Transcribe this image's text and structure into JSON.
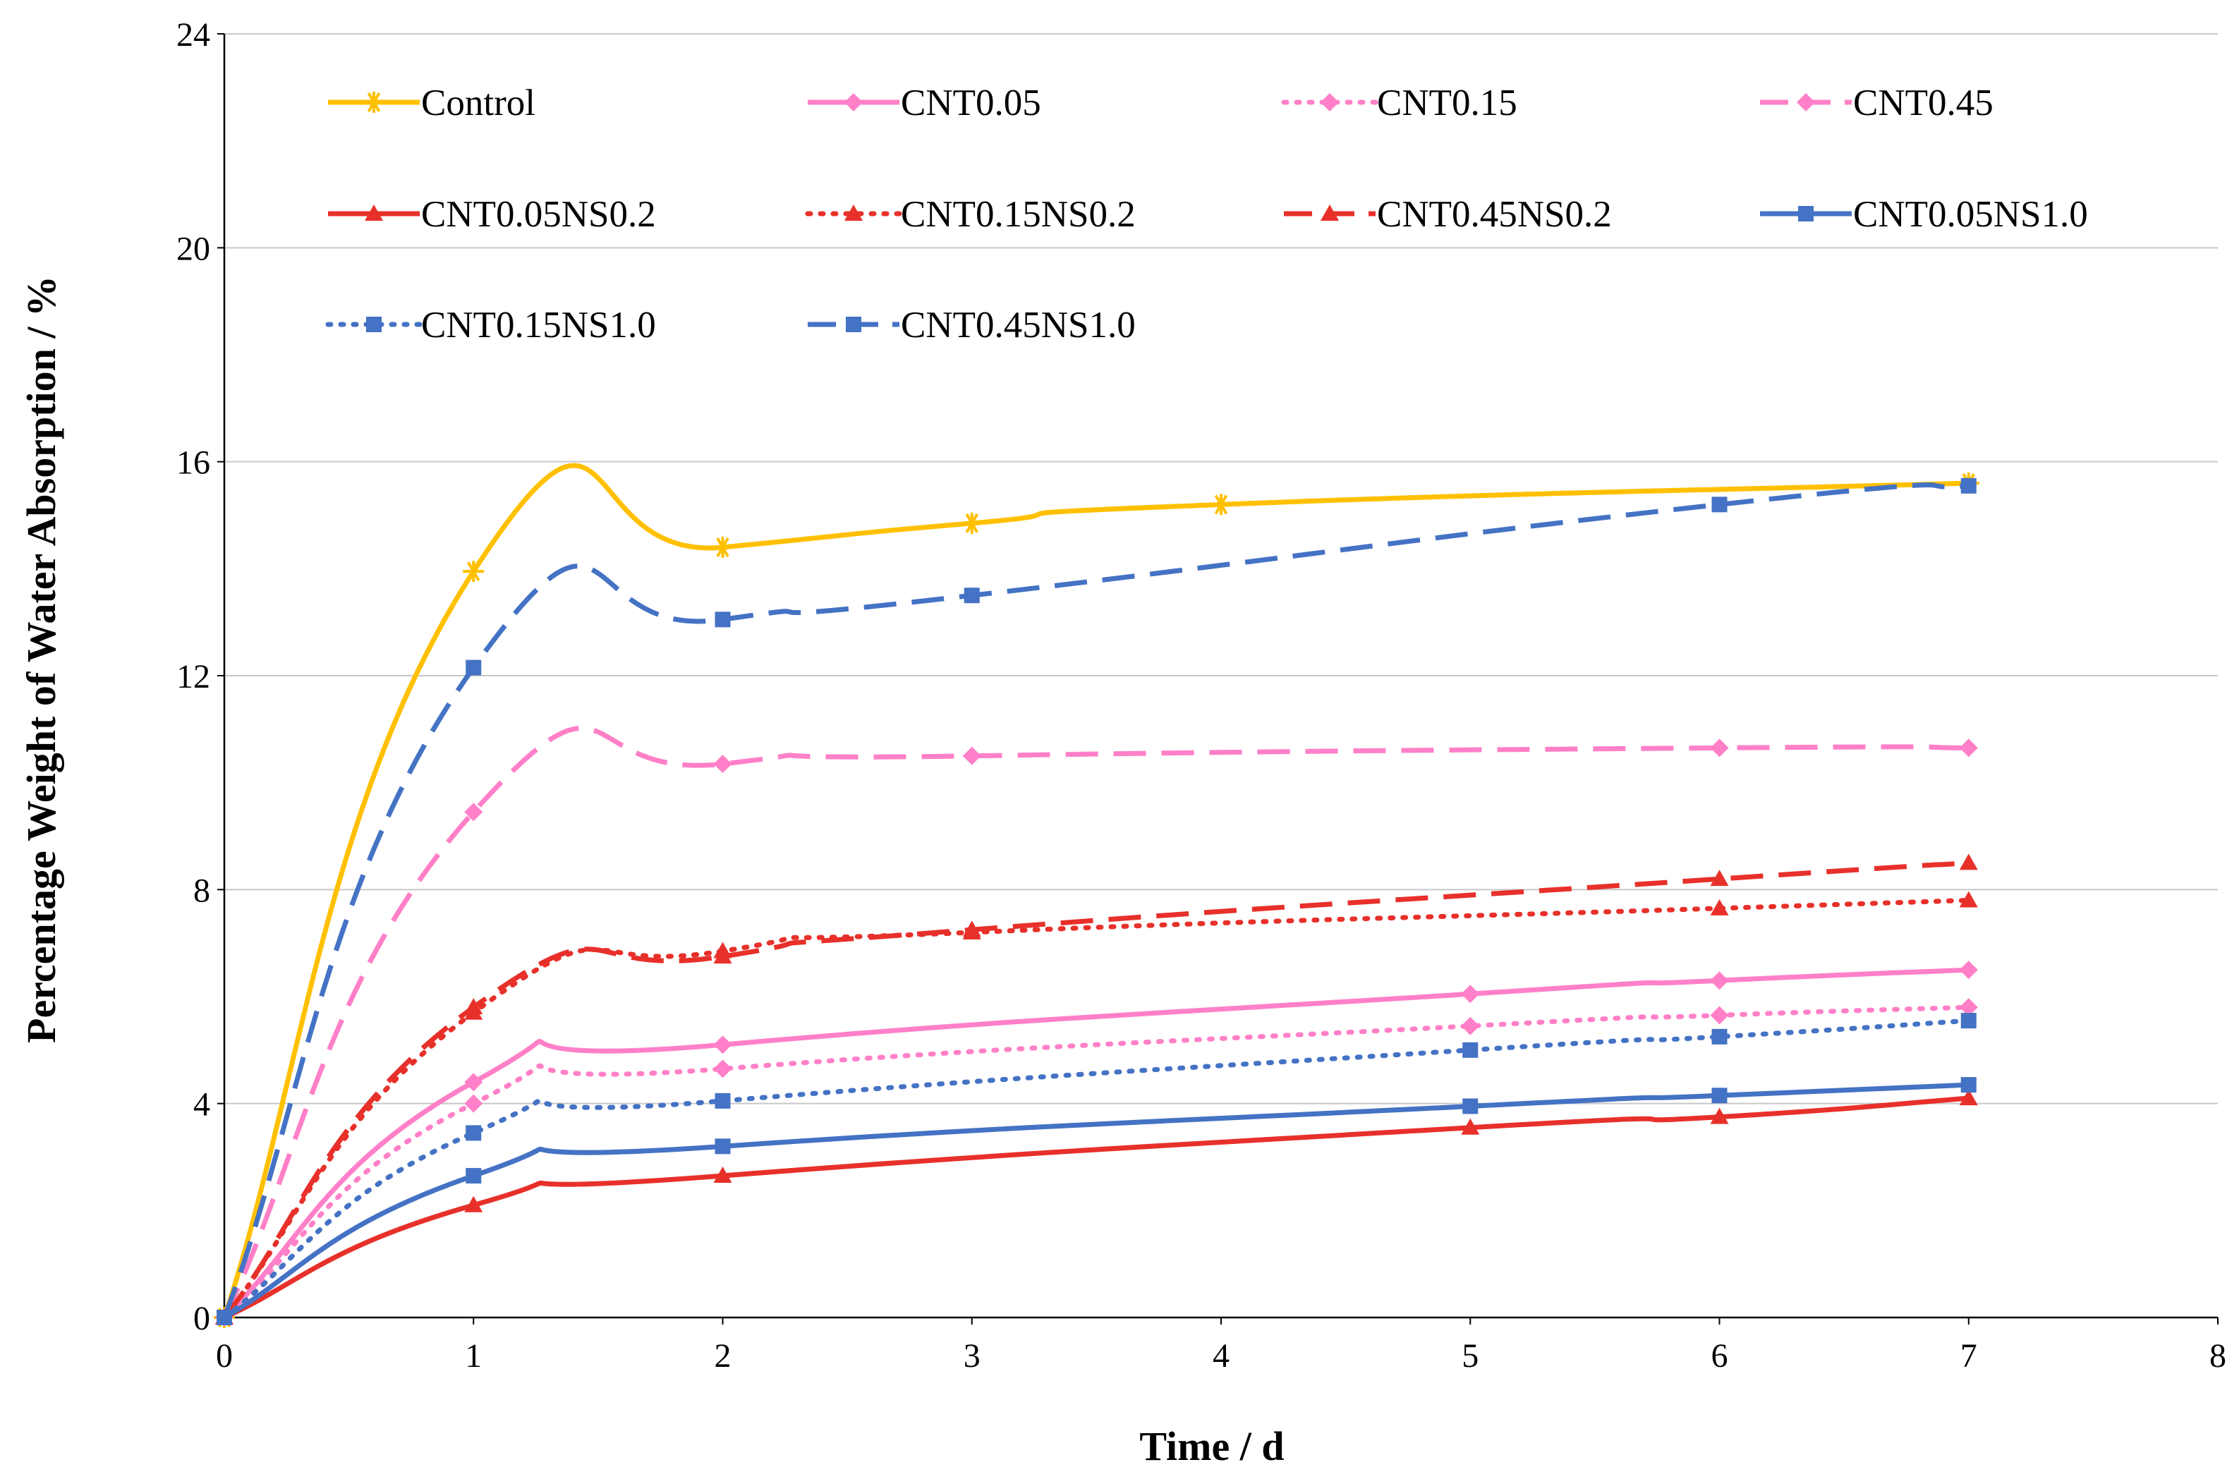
{
  "chart_data": {
    "type": "line",
    "title": "",
    "xlabel": "Time / d",
    "ylabel": "Percentage Weight of Water Absorption / %",
    "xlim": [
      0,
      8
    ],
    "ylim": [
      0,
      24
    ],
    "xticks": [
      "0",
      "1",
      "2",
      "3",
      "4",
      "5",
      "6",
      "7",
      "8"
    ],
    "yticks": [
      "0",
      "4",
      "8",
      "12",
      "16",
      "20",
      "24"
    ],
    "grid": "horizontal",
    "legend_position": "top",
    "series": [
      {
        "name": "Control",
        "color": "#FFC000",
        "dash": "solid",
        "marker": "star",
        "x": [
          0,
          1,
          2,
          3,
          4,
          7
        ],
        "values": [
          0,
          13.95,
          14.4,
          14.85,
          15.2,
          15.6
        ]
      },
      {
        "name": "CNT0.05",
        "color": "#FF80C8",
        "dash": "solid",
        "marker": "diamond",
        "x": [
          0,
          1,
          2,
          5,
          6,
          7
        ],
        "values": [
          0,
          4.4,
          5.1,
          6.05,
          6.3,
          6.5
        ]
      },
      {
        "name": "CNT0.15",
        "color": "#FF80C8",
        "dash": "dot",
        "marker": "diamond",
        "x": [
          0,
          1,
          2,
          5,
          6,
          7
        ],
        "values": [
          0,
          4.0,
          4.65,
          5.45,
          5.65,
          5.8
        ]
      },
      {
        "name": "CNT0.45",
        "color": "#FF80C8",
        "dash": "dash",
        "marker": "diamond",
        "x": [
          0,
          1,
          2,
          3,
          6,
          7
        ],
        "values": [
          0,
          9.45,
          10.35,
          10.5,
          10.65,
          10.65
        ]
      },
      {
        "name": "CNT0.05NS0.2",
        "color": "#E8302A",
        "dash": "solid",
        "marker": "triangle",
        "x": [
          0,
          1,
          2,
          5,
          6,
          7
        ],
        "values": [
          0,
          2.1,
          2.65,
          3.55,
          3.75,
          4.1
        ]
      },
      {
        "name": "CNT0.15NS0.2",
        "color": "#E8302A",
        "dash": "dot",
        "marker": "triangle",
        "x": [
          0,
          1,
          2,
          3,
          6,
          7
        ],
        "values": [
          0,
          5.7,
          6.85,
          7.2,
          7.65,
          7.8
        ]
      },
      {
        "name": "CNT0.45NS0.2",
        "color": "#E8302A",
        "dash": "dash",
        "marker": "triangle",
        "x": [
          0,
          1,
          2,
          3,
          6,
          7
        ],
        "values": [
          0,
          5.8,
          6.75,
          7.25,
          8.2,
          8.5
        ]
      },
      {
        "name": "CNT0.05NS1.0",
        "color": "#4472C4",
        "dash": "solid",
        "marker": "square",
        "x": [
          0,
          1,
          2,
          5,
          6,
          7
        ],
        "values": [
          0,
          2.65,
          3.2,
          3.95,
          4.15,
          4.35
        ]
      },
      {
        "name": "CNT0.15NS1.0",
        "color": "#4472C4",
        "dash": "dot",
        "marker": "square",
        "x": [
          0,
          1,
          2,
          5,
          6,
          7
        ],
        "values": [
          0,
          3.45,
          4.05,
          5.0,
          5.25,
          5.55
        ]
      },
      {
        "name": "CNT0.45NS1.0",
        "color": "#4472C4",
        "dash": "dash",
        "marker": "square",
        "x": [
          0,
          1,
          2,
          3,
          6,
          7
        ],
        "values": [
          0,
          12.15,
          13.05,
          13.5,
          15.2,
          15.55
        ]
      }
    ]
  }
}
